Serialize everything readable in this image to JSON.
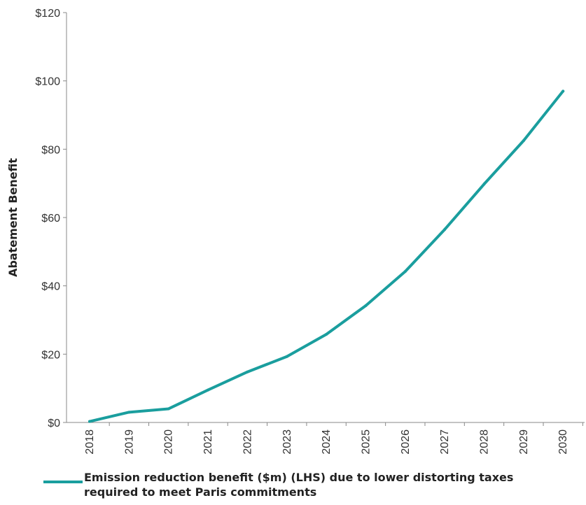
{
  "chart_data": {
    "type": "line",
    "title": "",
    "xlabel": "",
    "ylabel": "Abatement Benefit",
    "categories": [
      "2018",
      "2019",
      "2020",
      "2021",
      "2022",
      "2023",
      "2024",
      "2025",
      "2026",
      "2027",
      "2028",
      "2029",
      "2030"
    ],
    "yticks": [
      "$0",
      "$20",
      "$40",
      "$60",
      "$80",
      "$100",
      "$120"
    ],
    "ylim": [
      0,
      120
    ],
    "grid": false,
    "legend_position": "bottom",
    "series": [
      {
        "name": "Emission reduction benefit ($m) (LHS) due to lower distorting taxes required to meet Paris commitments",
        "color": "#1a9e9e",
        "values": [
          0.3,
          3,
          4,
          9.5,
          14.8,
          19.3,
          25.8,
          34.2,
          44.2,
          56.5,
          69.8,
          82.5,
          97
        ]
      }
    ]
  }
}
